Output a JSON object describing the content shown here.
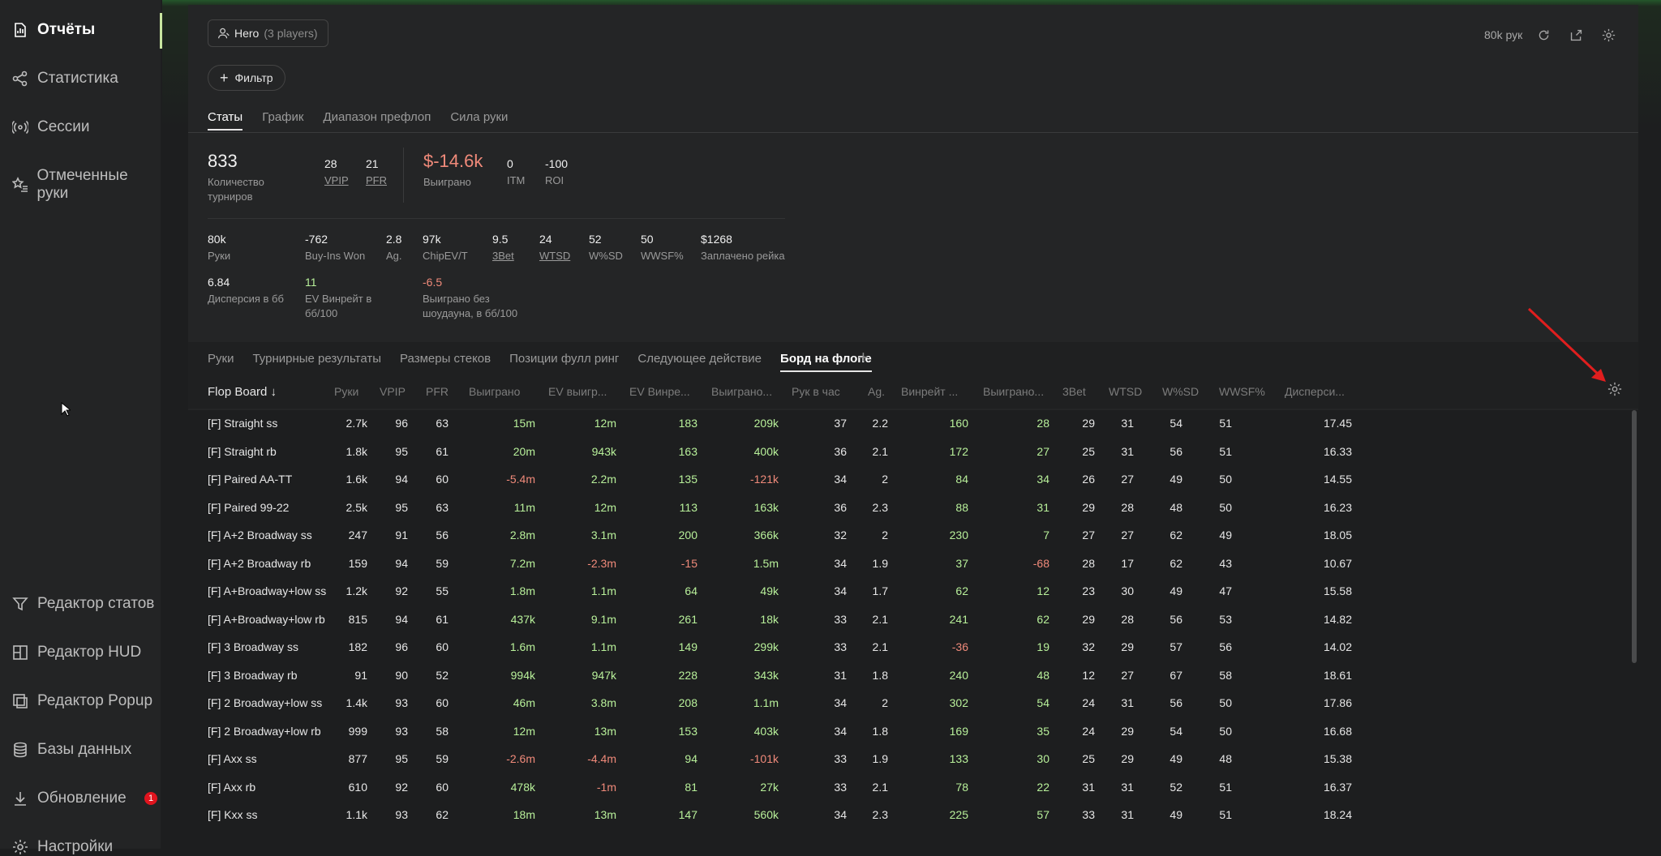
{
  "sidebar": {
    "items": [
      {
        "label": "Отчёты",
        "icon": "report-icon"
      },
      {
        "label": "Статистика",
        "icon": "share-nodes-icon"
      },
      {
        "label": "Сессии",
        "icon": "broadcast-icon"
      },
      {
        "label": "Отмеченные руки",
        "icon": "star-list-icon"
      }
    ],
    "bottom_items": [
      {
        "label": "Редактор статов",
        "icon": "filter-icon"
      },
      {
        "label": "Редактор HUD",
        "icon": "layout-icon"
      },
      {
        "label": "Редактор Popup",
        "icon": "popup-icon"
      },
      {
        "label": "Базы данных",
        "icon": "database-icon"
      },
      {
        "label": "Обновление",
        "icon": "download-icon"
      },
      {
        "label": "Настройки",
        "icon": "gear-icon"
      }
    ],
    "update_badge": "1"
  },
  "header": {
    "hero_name": "Hero",
    "hero_players": "(3 players)",
    "filter_label": "Фильтр",
    "hands_count": "80k рук"
  },
  "tabs_main": [
    "Статы",
    "График",
    "Диапазон префлоп",
    "Сила руки"
  ],
  "stats": {
    "tournaments": {
      "value": "833",
      "label": "Количество турниров"
    },
    "vpip": {
      "value": "28",
      "label": "VPIP"
    },
    "pfr": {
      "value": "21",
      "label": "PFR"
    },
    "won": {
      "value": "$-14.6k",
      "label": "Выиграно"
    },
    "itm": {
      "value": "0",
      "label": "ITM"
    },
    "roi": {
      "value": "-100",
      "label": "ROI"
    },
    "hands": {
      "value": "80k",
      "label": "Руки"
    },
    "buyins": {
      "value": "-762",
      "label": "Buy-Ins Won"
    },
    "ag": {
      "value": "2.8",
      "label": "Ag."
    },
    "chipev": {
      "value": "97k",
      "label": "ChipEV/T"
    },
    "threebet": {
      "value": "9.5",
      "label": "3Bet"
    },
    "wtsd": {
      "value": "24",
      "label": "WTSD"
    },
    "wsd": {
      "value": "52",
      "label": "W%SD"
    },
    "wwsf": {
      "value": "50",
      "label": "WWSF%"
    },
    "rake": {
      "value": "$1268",
      "label": "Заплачено рейка"
    },
    "dispersion": {
      "value": "6.84",
      "label": "Дисперсия в бб"
    },
    "ev_winrate": {
      "value": "11",
      "label": "EV Винрейт в бб/100"
    },
    "won_nosd": {
      "value": "-6.5",
      "label": "Выиграно без шоудауна, в бб/100"
    }
  },
  "tabs_sub": [
    "Руки",
    "Турнирные результаты",
    "Размеры стеков",
    "Позиции фулл ринг",
    "Следующее действие",
    "Борд на флопе"
  ],
  "table": {
    "headers": [
      "Flop Board ↓",
      "Руки",
      "VPIP",
      "PFR",
      "Выиграно",
      "EV выигр...",
      "EV Винре...",
      "Выиграно...",
      "Рук в час",
      "Ag.",
      "Винрейт ...",
      "Выиграно...",
      "3Bet",
      "WTSD",
      "W%SD",
      "WWSF%",
      "Дисперси..."
    ],
    "rows": [
      [
        "[F] Straight ss",
        "2.7k",
        "96",
        "63",
        "15m",
        "12m",
        "183",
        "209k",
        "37",
        "2.2",
        "160",
        "28",
        "29",
        "31",
        "54",
        "51",
        "17.45"
      ],
      [
        "[F] Straight rb",
        "1.8k",
        "95",
        "61",
        "20m",
        "943k",
        "163",
        "400k",
        "36",
        "2.1",
        "172",
        "27",
        "25",
        "31",
        "56",
        "51",
        "16.33"
      ],
      [
        "[F] Paired AA-TT",
        "1.6k",
        "94",
        "60",
        "-5.4m",
        "2.2m",
        "135",
        "-121k",
        "34",
        "2",
        "84",
        "34",
        "26",
        "27",
        "49",
        "50",
        "14.55"
      ],
      [
        "[F] Paired 99-22",
        "2.5k",
        "95",
        "63",
        "11m",
        "12m",
        "113",
        "163k",
        "36",
        "2.3",
        "88",
        "31",
        "29",
        "28",
        "48",
        "50",
        "16.23"
      ],
      [
        "[F] A+2 Broadway ss",
        "247",
        "91",
        "56",
        "2.8m",
        "3.1m",
        "200",
        "366k",
        "32",
        "2",
        "230",
        "7",
        "27",
        "27",
        "62",
        "49",
        "18.05"
      ],
      [
        "[F] A+2 Broadway rb",
        "159",
        "94",
        "59",
        "7.2m",
        "-2.3m",
        "-15",
        "1.5m",
        "34",
        "1.9",
        "37",
        "-68",
        "28",
        "17",
        "62",
        "43",
        "10.67"
      ],
      [
        "[F] A+Broadway+low ss",
        "1.2k",
        "92",
        "55",
        "1.8m",
        "1.1m",
        "64",
        "49k",
        "34",
        "1.7",
        "62",
        "12",
        "23",
        "30",
        "49",
        "47",
        "15.58"
      ],
      [
        "[F] A+Broadway+low rb",
        "815",
        "94",
        "61",
        "437k",
        "9.1m",
        "261",
        "18k",
        "33",
        "2.1",
        "241",
        "62",
        "29",
        "28",
        "56",
        "53",
        "14.82"
      ],
      [
        "[F] 3 Broadway ss",
        "182",
        "96",
        "60",
        "1.6m",
        "1.1m",
        "149",
        "299k",
        "33",
        "2.1",
        "-36",
        "19",
        "32",
        "29",
        "57",
        "56",
        "14.02"
      ],
      [
        "[F] 3 Broadway rb",
        "91",
        "90",
        "52",
        "994k",
        "947k",
        "228",
        "343k",
        "31",
        "1.8",
        "240",
        "48",
        "12",
        "27",
        "67",
        "58",
        "18.61"
      ],
      [
        "[F] 2 Broadway+low ss",
        "1.4k",
        "93",
        "60",
        "46m",
        "3.8m",
        "208",
        "1.1m",
        "34",
        "2",
        "302",
        "54",
        "24",
        "31",
        "56",
        "50",
        "17.86"
      ],
      [
        "[F] 2 Broadway+low rb",
        "999",
        "93",
        "58",
        "12m",
        "13m",
        "153",
        "403k",
        "34",
        "1.8",
        "169",
        "35",
        "24",
        "29",
        "54",
        "50",
        "16.68"
      ],
      [
        "[F] Axx ss",
        "877",
        "95",
        "59",
        "-2.6m",
        "-4.4m",
        "94",
        "-101k",
        "33",
        "1.9",
        "133",
        "30",
        "25",
        "29",
        "49",
        "48",
        "15.38"
      ],
      [
        "[F] Axx rb",
        "610",
        "92",
        "60",
        "478k",
        "-1m",
        "81",
        "27k",
        "33",
        "2.1",
        "78",
        "22",
        "31",
        "31",
        "52",
        "51",
        "16.37"
      ],
      [
        "[F] Kxx ss",
        "1.1k",
        "93",
        "62",
        "18m",
        "13m",
        "147",
        "560k",
        "34",
        "2.3",
        "225",
        "57",
        "33",
        "31",
        "49",
        "51",
        "18.24"
      ]
    ]
  },
  "colors": {
    "positive": "#b8f09a",
    "negative": "#f08a7a",
    "accent": "#c8e6a0",
    "annotation_arrow": "#e01e1e"
  }
}
